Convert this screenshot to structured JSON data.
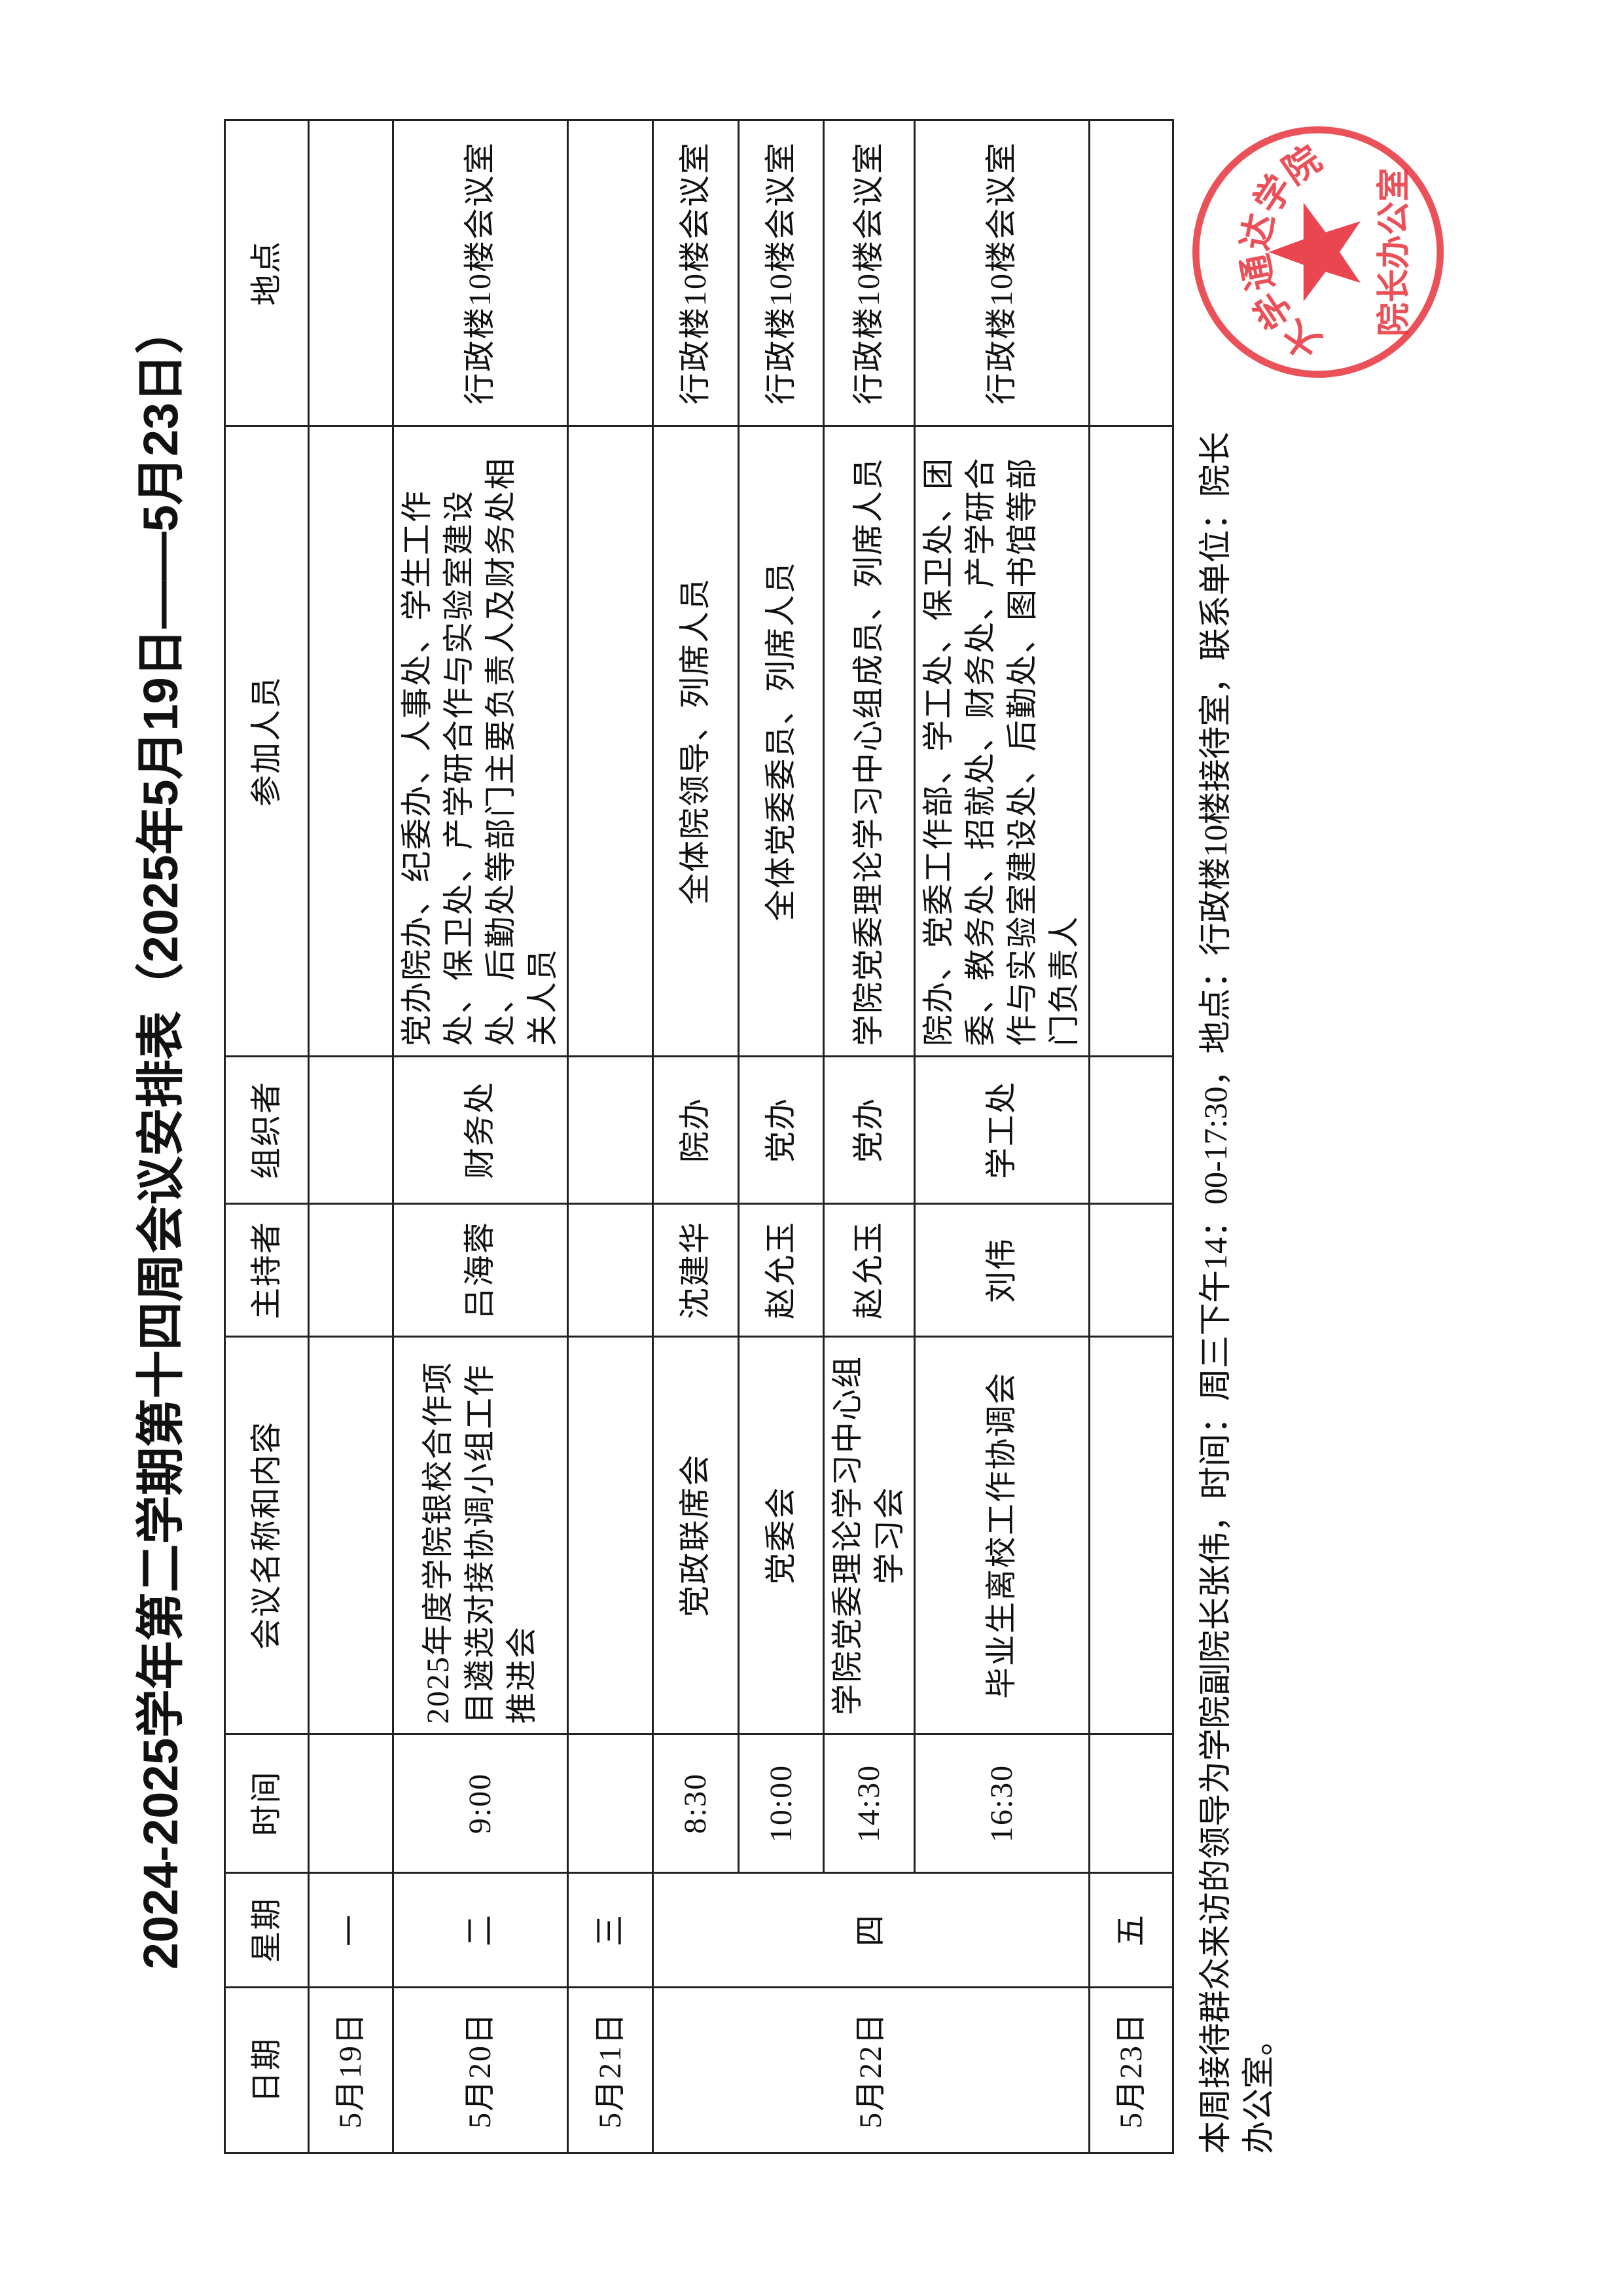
{
  "title": "2024-2025学年第二学期第十四周会议安排表（2025年5月19日——5月23日）",
  "headers": [
    "日期",
    "星期",
    "时间",
    "会议名称和内容",
    "主持者",
    "组织者",
    "参加人员",
    "地点"
  ],
  "days": [
    {
      "date": "5月19日",
      "weekday": "一",
      "meetings": [
        {
          "time": "",
          "name": "",
          "host": "",
          "organizer": "",
          "participants": "",
          "location": ""
        }
      ]
    },
    {
      "date": "5月20日",
      "weekday": "二",
      "meetings": [
        {
          "time": "9:00",
          "name": "2025年度学院银校合作项目遴选对接协调小组工作推进会",
          "host": "吕海蓉",
          "organizer": "财务处",
          "participants": "党办院办、纪委办、人事处、学生工作处、保卫处、产学研合作与实验室建设处、后勤处等部门主要负责人及财务处相关人员",
          "location": "行政楼10楼会议室"
        }
      ]
    },
    {
      "date": "5月21日",
      "weekday": "三",
      "meetings": [
        {
          "time": "",
          "name": "",
          "host": "",
          "organizer": "",
          "participants": "",
          "location": ""
        }
      ]
    },
    {
      "date": "5月22日",
      "weekday": "四",
      "meetings": [
        {
          "time": "8:30",
          "name": "党政联席会",
          "host": "沈建华",
          "organizer": "院办",
          "participants": "全体院领导、列席人员",
          "location": "行政楼10楼会议室"
        },
        {
          "time": "10:00",
          "name": "党委会",
          "host": "赵允玉",
          "organizer": "党办",
          "participants": "全体党委委员、列席人员",
          "location": "行政楼10楼会议室"
        },
        {
          "time": "14:30",
          "name": "学院党委理论学习中心组学习会",
          "host": "赵允玉",
          "organizer": "党办",
          "participants": "学院党委理论学习中心组成员、列席人员",
          "location": "行政楼10楼会议室"
        },
        {
          "time": "16:30",
          "name": "毕业生离校工作协调会",
          "host": "刘伟",
          "organizer": "学工处",
          "participants": "院办、党委工作部、学工处、保卫处、团委、教务处、招就处、财务处、产学研合作与实验室建设处、后勤处、图书馆等部门负责人",
          "location": "行政楼10楼会议室"
        }
      ]
    },
    {
      "date": "5月23日",
      "weekday": "五",
      "meetings": [
        {
          "time": "",
          "name": "",
          "host": "",
          "organizer": "",
          "participants": "",
          "location": ""
        }
      ]
    }
  ],
  "footer": "本周接待群众来访的领导为学院副院长张伟，时间：周三下午14：00-17:30，地点：行政楼10楼接待室，联系单位：院长办公室。",
  "stamp": {
    "outer_text": "大学通达学院",
    "inner_text": "院长办公室",
    "color": "#e8323c",
    "icon": "star-icon"
  }
}
